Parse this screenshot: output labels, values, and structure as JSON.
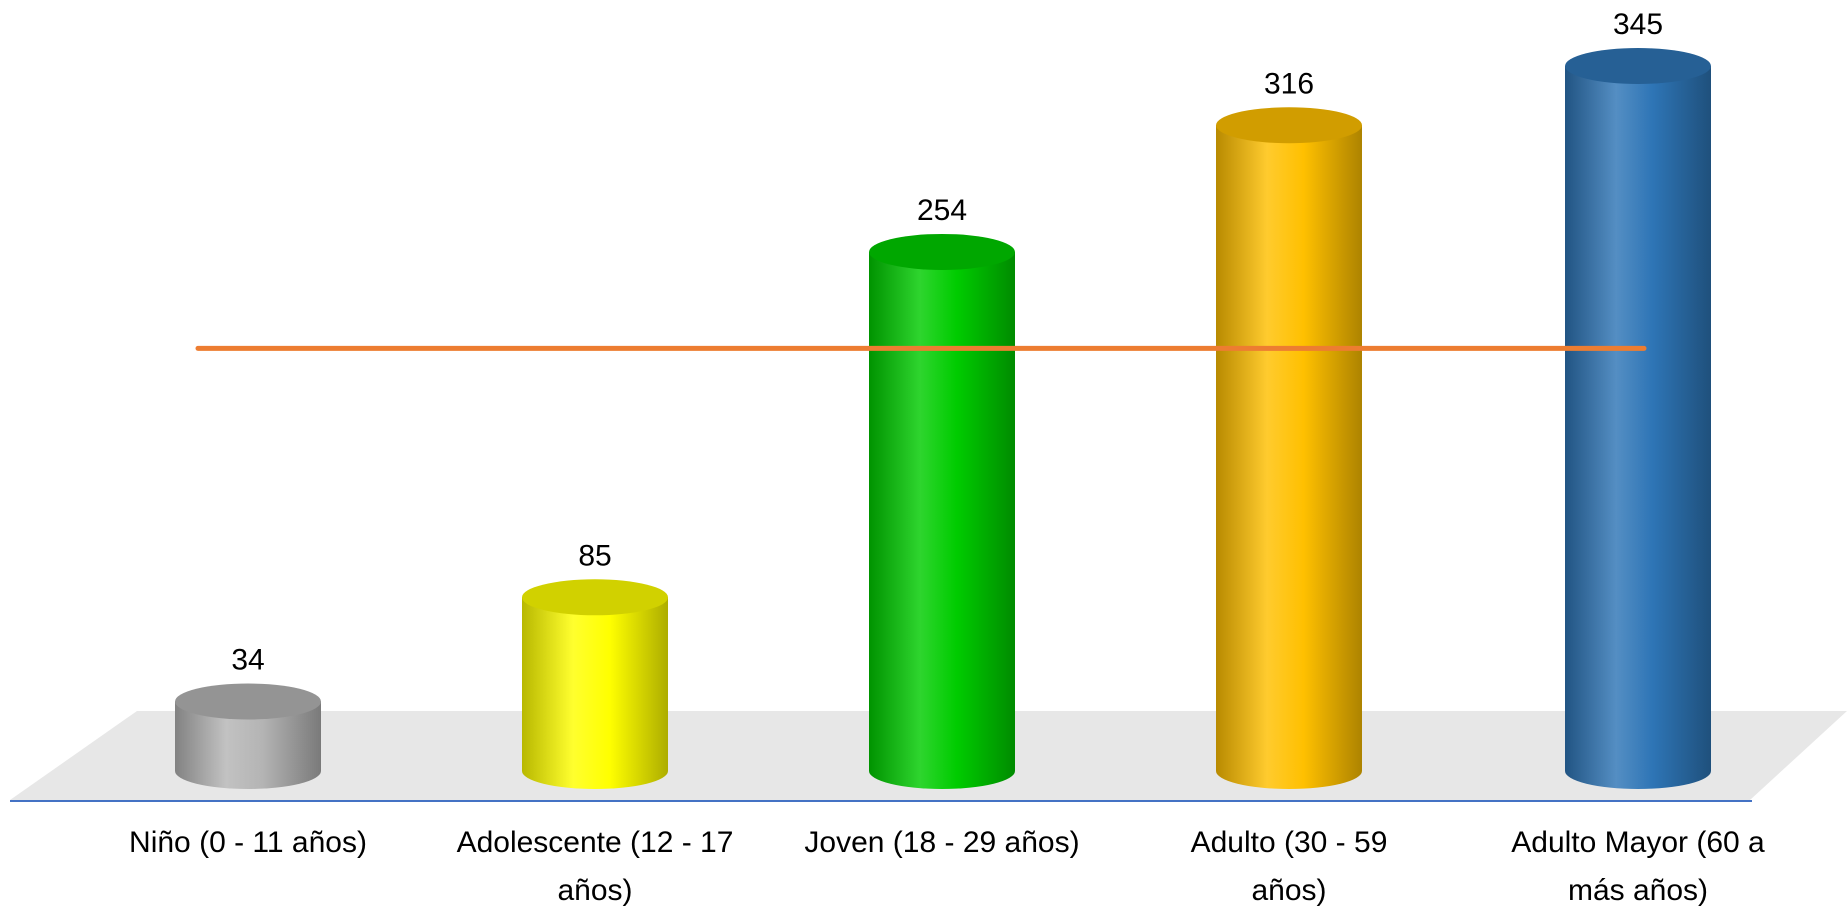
{
  "chart_data": {
    "type": "bar",
    "categories": [
      [
        "Niño (0 - 11 años)"
      ],
      [
        "Adolescente (12 - 17",
        "años)"
      ],
      [
        "Joven (18 - 29 años)"
      ],
      [
        "Adulto (30 - 59",
        "años)"
      ],
      [
        "Adulto Mayor (60 a",
        "más años)"
      ]
    ],
    "values": [
      34,
      85,
      254,
      316,
      345
    ],
    "data_labels": [
      "34",
      "85",
      "254",
      "316",
      "345"
    ],
    "bar_colors": [
      "#b4b4b4",
      "#ffff00",
      "#00cc00",
      "#ffc000",
      "#2e75b6"
    ],
    "bar_style": "3d-cylinder",
    "reference_line": {
      "value": 206.8,
      "color": "#ed7d31"
    },
    "ylim": [
      0,
      345
    ],
    "axis_line_color": "#4472c4",
    "floor_color": "#e7e7e7",
    "grid": false,
    "legend": "none"
  }
}
